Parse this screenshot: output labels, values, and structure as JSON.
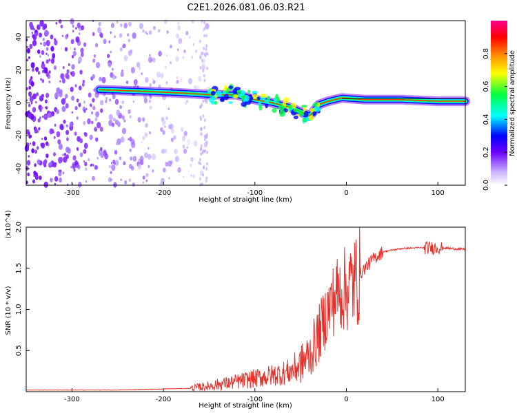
{
  "title": "C2E1.2026.081.06.03.R21",
  "chart_data": [
    {
      "type": "heatmap",
      "title": "C2E1.2026.081.06.03.R21",
      "xlabel": "Height of straight line (km)",
      "ylabel": "Frequency (Hz)",
      "xlim": [
        -350,
        130
      ],
      "ylim": [
        -50,
        50
      ],
      "x_ticks": [
        -300,
        -200,
        -100,
        0,
        100
      ],
      "y_ticks": [
        -40,
        -20,
        0,
        20,
        40
      ],
      "colorbar": {
        "label": "Normalized spectral amplitude",
        "range": [
          0,
          1
        ],
        "ticks": [
          0.0,
          0.2,
          0.4,
          0.6,
          0.8
        ],
        "colors": [
          "#ffffff",
          "#6a00ff",
          "#0000ff",
          "#00ffff",
          "#00ff00",
          "#ffff00",
          "#ff8000",
          "#ff0000",
          "#ff00a0"
        ]
      },
      "ridge": {
        "x": [
          -270,
          -220,
          -180,
          -150,
          -120,
          -100,
          -80,
          -60,
          -40,
          -30,
          -20,
          -5,
          20,
          60,
          100,
          130
        ],
        "y": [
          8,
          7,
          6,
          5,
          5,
          2,
          0,
          -3,
          -8,
          -1,
          1,
          3,
          2,
          2,
          1,
          1
        ]
      }
    },
    {
      "type": "line",
      "xlabel": "Height of straight line (km)",
      "ylabel": "SNR (10 * v/v)",
      "y_multiplier": "(x10^4)",
      "xlim": [
        -350,
        130
      ],
      "ylim": [
        0,
        2.0
      ],
      "x_ticks": [
        -300,
        -200,
        -100,
        0,
        100
      ],
      "y_ticks": [
        0.5,
        1.0,
        1.5,
        2.0
      ],
      "color": "#e8302a",
      "series": [
        {
          "name": "SNR",
          "x": [
            -350,
            -250,
            -170,
            -150,
            -120,
            -100,
            -80,
            -60,
            -50,
            -40,
            -30,
            -20,
            -10,
            0,
            10,
            20,
            30,
            40,
            60,
            80,
            100,
            130
          ],
          "y": [
            0.02,
            0.02,
            0.04,
            0.07,
            0.12,
            0.16,
            0.2,
            0.25,
            0.33,
            0.45,
            0.7,
            1.0,
            1.2,
            1.25,
            1.35,
            1.5,
            1.62,
            1.7,
            1.74,
            1.75,
            1.75,
            1.73
          ]
        }
      ]
    }
  ]
}
